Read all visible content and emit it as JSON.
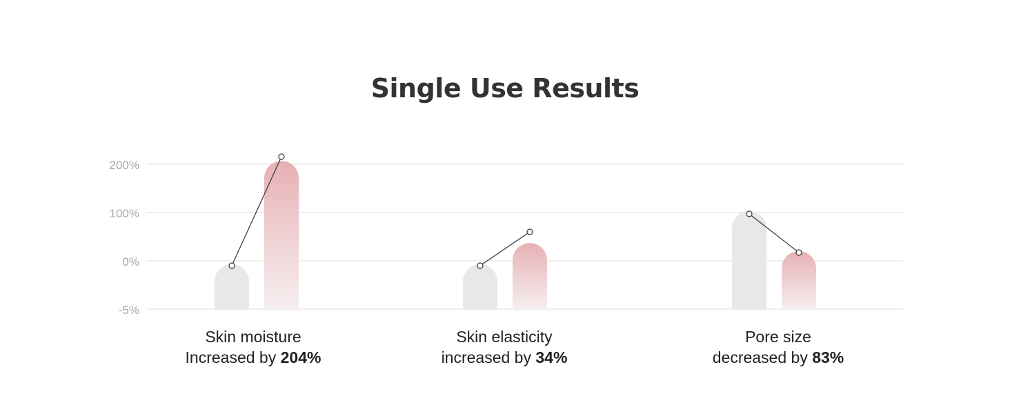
{
  "chart_data": {
    "type": "bar",
    "title": "Single Use Results",
    "xlabel": "",
    "ylabel": "",
    "y_ticks": [
      "200%",
      "100%",
      "0%",
      "-5%"
    ],
    "categories": [
      {
        "line1": "Skin moisture",
        "line2_prefix": "Increased by ",
        "line2_value": "204%",
        "before": 0,
        "after": 204
      },
      {
        "line1": "Skin elasticity",
        "line2_prefix": "increased by ",
        "line2_value": "34%",
        "before": 0,
        "after": 34
      },
      {
        "line1": "Pore size",
        "line2_prefix": "decreased by ",
        "line2_value": "83%",
        "before": 100,
        "after": 17
      }
    ],
    "series": [
      {
        "values": [
          0,
          0,
          100
        ],
        "color": "#e8e8e8"
      },
      {
        "values": [
          204,
          34,
          17
        ],
        "color": "#e6b2b6"
      }
    ],
    "grid": true,
    "legend": "none"
  }
}
